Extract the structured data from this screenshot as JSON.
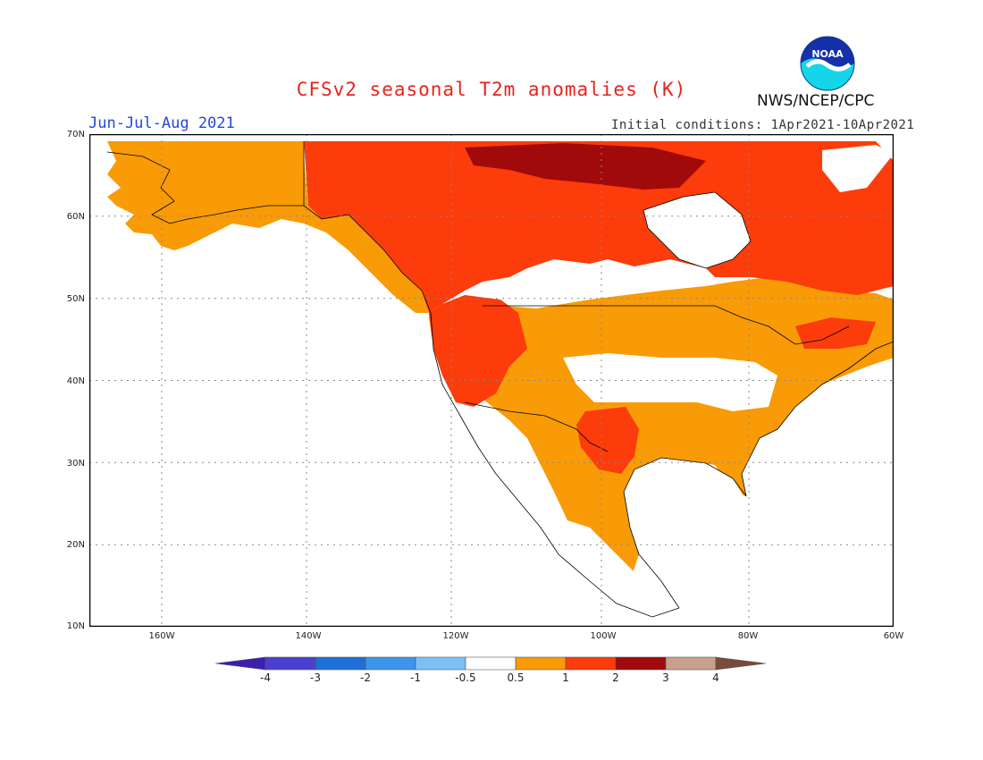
{
  "title": "CFSv2 seasonal T2m anomalies (K)",
  "season": "Jun-Jul-Aug 2021",
  "initial_conditions": "Initial conditions: 1Apr2021-10Apr2021",
  "organization": "NWS/NCEP/CPC",
  "logo_text": "NOAA",
  "colors": {
    "title": "#e8231c",
    "season": "#2448d6",
    "land_outline": "#000000",
    "grid": "#888888"
  },
  "map": {
    "lat_ticks": [
      "70N",
      "60N",
      "50N",
      "40N",
      "30N",
      "20N",
      "10N"
    ],
    "lon_ticks": [
      "160W",
      "140W",
      "120W",
      "100W",
      "80W",
      "60W"
    ],
    "lat_range": [
      10,
      70
    ],
    "lon_range": [
      -171,
      -60
    ],
    "gridlines": "dotted"
  },
  "colorbar": {
    "bins": [
      {
        "range": "< -4",
        "color": "#3d1fb0"
      },
      {
        "range": "-4 to -3",
        "color": "#4a3fd0"
      },
      {
        "range": "-3 to -2",
        "color": "#1f6fd8"
      },
      {
        "range": "-2 to -1",
        "color": "#3d95ec"
      },
      {
        "range": "-1 to -0.5",
        "color": "#7cc0f5"
      },
      {
        "range": "-0.5 to 0.5",
        "color": "#ffffff"
      },
      {
        "range": "0.5 to 1",
        "color": "#f89b06"
      },
      {
        "range": "1 to 2",
        "color": "#fc3c0a"
      },
      {
        "range": "2 to 3",
        "color": "#a10a0a"
      },
      {
        "range": "3 to 4",
        "color": "#c8a08c"
      },
      {
        "range": "> 4",
        "color": "#7a4a3a"
      }
    ],
    "labels": [
      "-4",
      "-3",
      "-2",
      "-1",
      "-0.5",
      "0.5",
      "1",
      "2",
      "3",
      "4"
    ]
  },
  "anomaly_regions": [
    {
      "region": "Alaska",
      "category": "0.5 to 1"
    },
    {
      "region": "Northern Canada / Arctic",
      "category": "1 to 2"
    },
    {
      "region": "Nunavut",
      "category": "2 to 3"
    },
    {
      "region": "Western US",
      "category": "1 to 2"
    },
    {
      "region": "Texas",
      "category": "1 to 2"
    },
    {
      "region": "Eastern Canada / Labrador",
      "category": "1 to 2"
    },
    {
      "region": "Great Plains",
      "category": "0.5 to 1"
    },
    {
      "region": "Southeast US",
      "category": "0.5 to 1"
    },
    {
      "region": "Central US",
      "category": "-0.5 to 0.5"
    },
    {
      "region": "Hudson Bay",
      "category": "-0.5 to 0.5"
    },
    {
      "region": "Mexico",
      "category": "0.5 to 1"
    }
  ]
}
